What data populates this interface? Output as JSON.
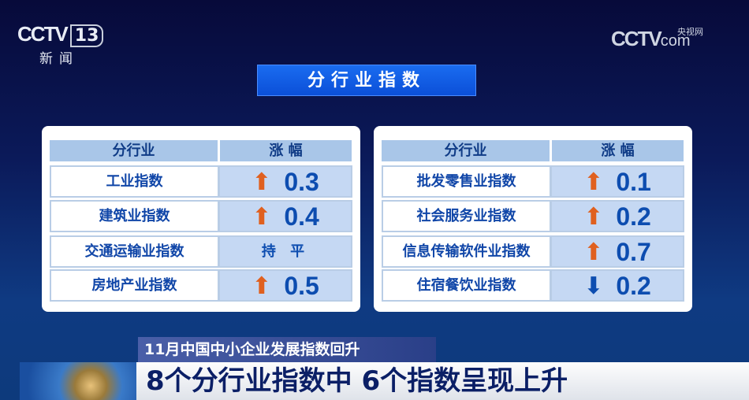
{
  "channel": {
    "logo": "CCTV",
    "number": "13",
    "name": "新闻"
  },
  "watermark": {
    "logo": "CCTV",
    "suffix": "com",
    "cn": "央视网"
  },
  "title": "分行业指数",
  "colors": {
    "up": "#e0601f",
    "down": "#0d4db0",
    "header_bg": "#a9c6e8",
    "value_bg": "#c5d8f3"
  },
  "tables": [
    {
      "headers": [
        "分行业",
        "涨 幅"
      ],
      "rows": [
        {
          "name": "工业指数",
          "direction": "up",
          "icon": "arrow-up-icon",
          "value": "0.3"
        },
        {
          "name": "建筑业指数",
          "direction": "up",
          "icon": "arrow-up-icon",
          "value": "0.4"
        },
        {
          "name": "交通运输业指数",
          "direction": "flat",
          "value": "持 平"
        },
        {
          "name": "房地产业指数",
          "direction": "up",
          "icon": "arrow-up-icon",
          "value": "0.5"
        }
      ]
    },
    {
      "headers": [
        "分行业",
        "涨 幅"
      ],
      "rows": [
        {
          "name": "批发零售业指数",
          "direction": "up",
          "icon": "arrow-up-icon",
          "value": "0.1"
        },
        {
          "name": "社会服务业指数",
          "direction": "up",
          "icon": "arrow-up-icon",
          "value": "0.2"
        },
        {
          "name": "信息传输软件业指数",
          "direction": "up",
          "icon": "arrow-up-icon",
          "value": "0.7"
        },
        {
          "name": "住宿餐饮业指数",
          "direction": "down",
          "icon": "arrow-down-icon",
          "value": "0.2"
        }
      ]
    }
  ],
  "ticker": {
    "headline": "11月中国中小企业发展指数回升",
    "main": "8个分行业指数中 6个指数呈现上升"
  }
}
